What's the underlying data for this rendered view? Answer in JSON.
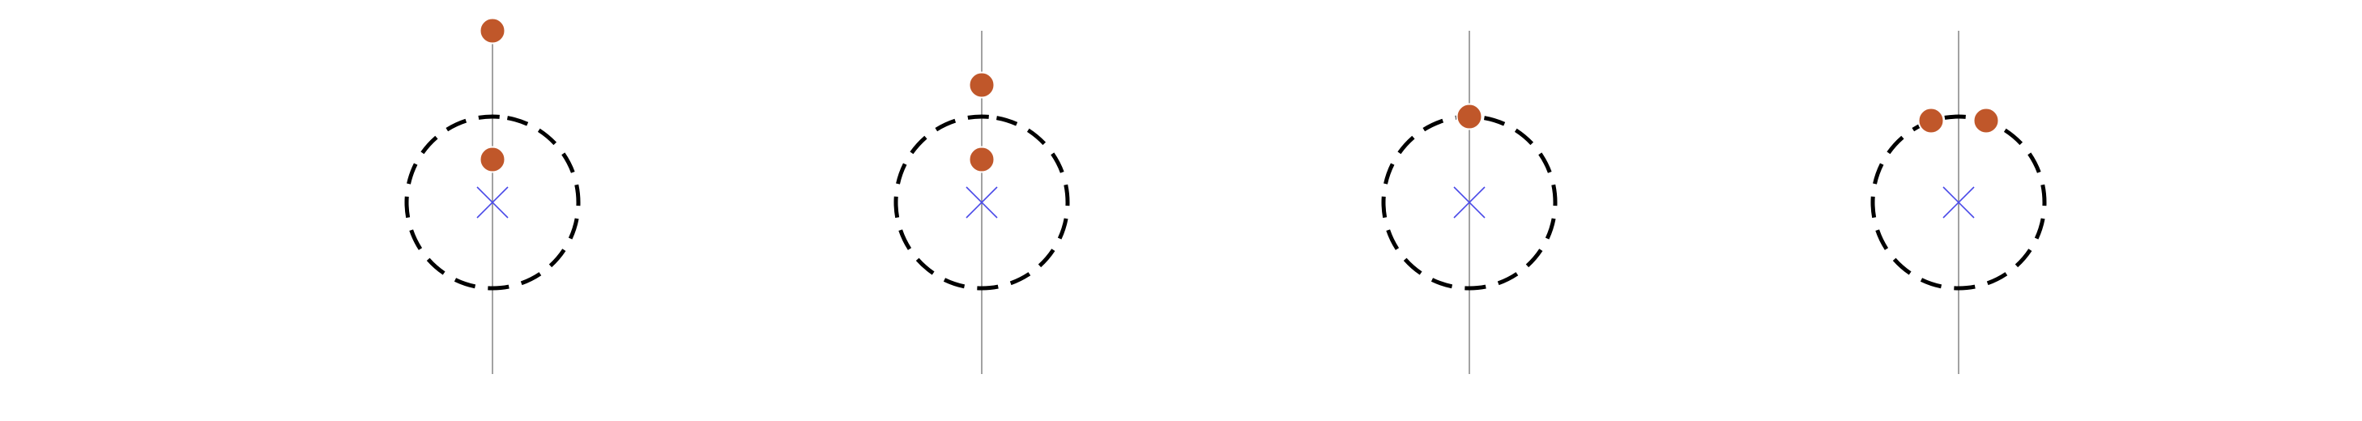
{
  "colors": {
    "background": "#ffffff",
    "axis_line": "#8a8a8a",
    "dashed_circle": "#000000",
    "center_marker": "#4a4ae8",
    "ball": "#c0572a"
  },
  "icons": {
    "center_marker": "x-mark-icon",
    "ball": "filled-circle-icon"
  },
  "panels": [
    {
      "id": "panel-1",
      "balls": [
        {
          "pos": "top-of-line"
        },
        {
          "pos": "inside-above-center"
        }
      ]
    },
    {
      "id": "panel-2",
      "balls": [
        {
          "pos": "just-above-circle"
        },
        {
          "pos": "inside-above-center"
        }
      ]
    },
    {
      "id": "panel-3",
      "balls": [
        {
          "pos": "on-circle-top"
        }
      ]
    },
    {
      "id": "panel-4",
      "balls": [
        {
          "pos": "on-circle-top-left"
        },
        {
          "pos": "on-circle-top-right"
        }
      ]
    }
  ]
}
